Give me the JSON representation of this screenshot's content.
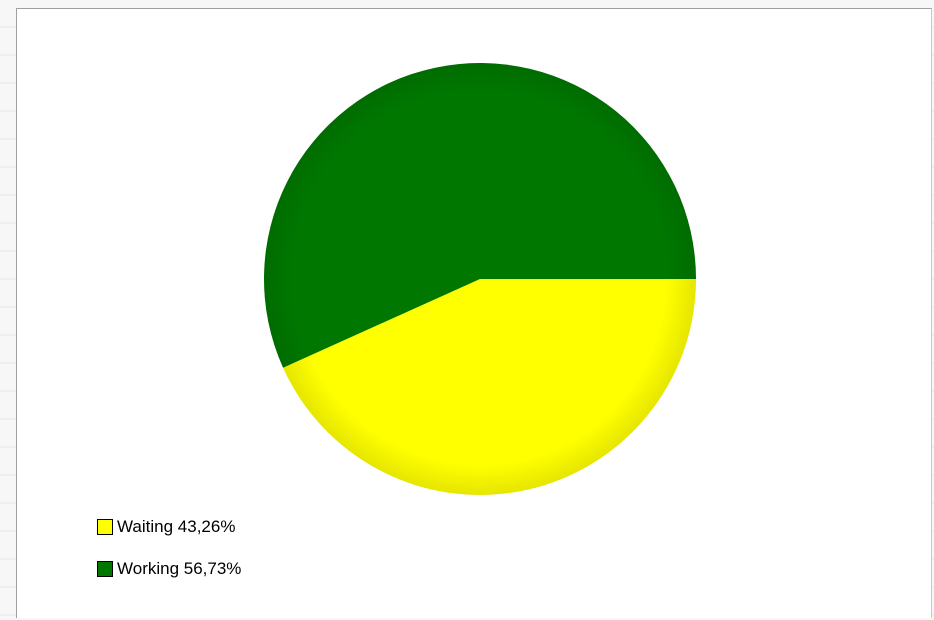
{
  "chart_data": {
    "type": "pie",
    "title": "",
    "slices": [
      {
        "label": "Waiting",
        "value": 43.26,
        "color": "#ffff00"
      },
      {
        "label": "Working",
        "value": 56.73,
        "color": "#007800"
      }
    ],
    "start_angle_deg": 0,
    "direction": "clockwise",
    "legend_position": "bottom-left"
  },
  "legend": {
    "items": [
      {
        "text": "Waiting 43,26%",
        "color": "#ffff00"
      },
      {
        "text": "Working 56,73%",
        "color": "#007800"
      }
    ]
  }
}
